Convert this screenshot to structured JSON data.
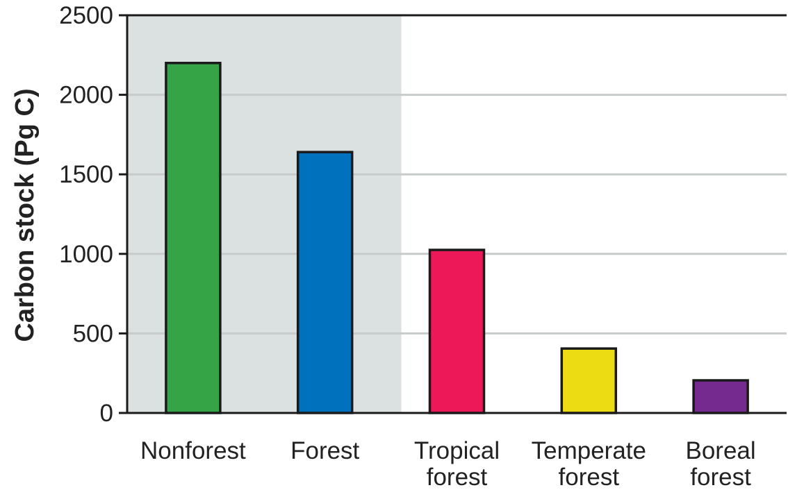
{
  "chart_data": {
    "type": "bar",
    "title": "",
    "xlabel": "",
    "ylabel": "Carbon stock (Pg C)",
    "ylim": [
      0,
      2500
    ],
    "yticks": [
      0,
      500,
      1000,
      1500,
      2000,
      2500
    ],
    "ytick_labels": [
      "0",
      "500",
      "1000",
      "1500",
      "2000",
      "2500"
    ],
    "grid": true,
    "shaded_categories": [
      "Nonforest",
      "Forest"
    ],
    "shade_color": "#dbe1e0",
    "categories": [
      {
        "lines": [
          "Nonforest"
        ],
        "value": 2200,
        "color": "#34a447"
      },
      {
        "lines": [
          "Forest"
        ],
        "value": 1640,
        "color": "#0071bc"
      },
      {
        "lines": [
          "Tropical",
          "forest"
        ],
        "value": 1025,
        "color": "#ec1858"
      },
      {
        "lines": [
          "Temperate",
          "forest"
        ],
        "value": 405,
        "color": "#ecdc14"
      },
      {
        "lines": [
          "Boreal",
          "forest"
        ],
        "value": 205,
        "color": "#742a8e"
      }
    ]
  }
}
